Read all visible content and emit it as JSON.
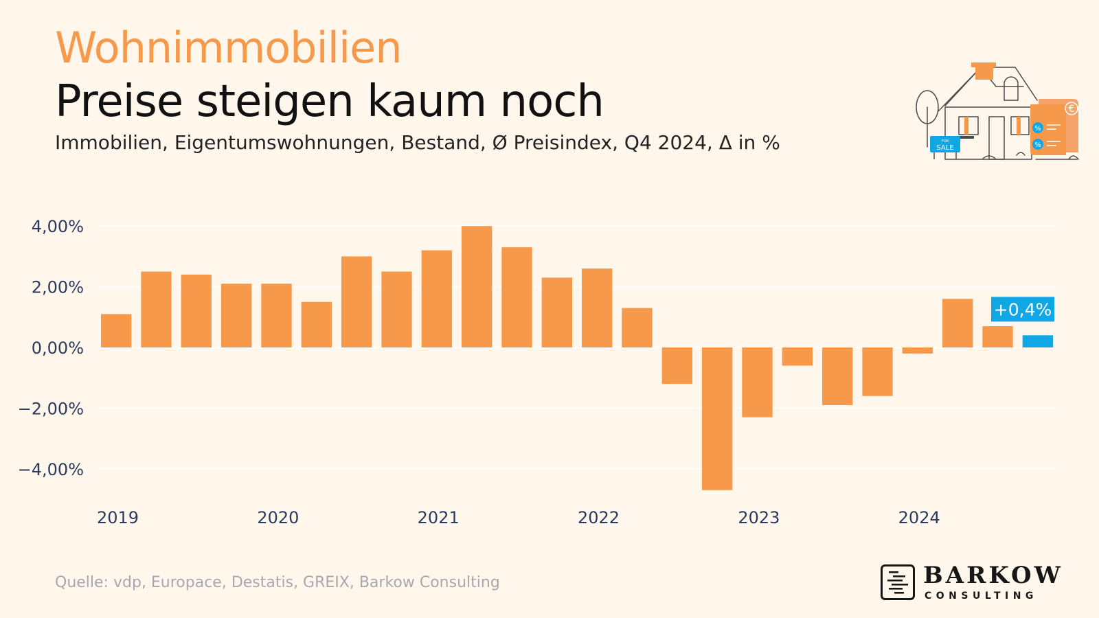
{
  "header": {
    "kicker": "Wohnimmobilien",
    "title": "Preise steigen kaum noch",
    "subtitle": "Immobilien, Eigentumswohnungen, Bestand, Ø Preisindex, Q4 2024, Δ in %"
  },
  "footer": {
    "source": "Quelle: vdp, Europace, Destatis, GREIX, Barkow Consulting"
  },
  "logo": {
    "name": "BARKOW",
    "sub": "CONSULTING",
    "icon": "barkow-logo-mark-icon"
  },
  "illustration": {
    "icon": "house-for-sale-icon",
    "sign_text": "SALE",
    "sign_small": "FOR",
    "currency_symbol": "€",
    "percent_symbol": "%"
  },
  "colors": {
    "background": "#fff6ec",
    "accent": "#f7994b",
    "highlight": "#11a7e4",
    "axis_text": "#2b3a5c"
  },
  "chart_data": {
    "type": "bar",
    "categories": [
      "Q1 2019",
      "Q2 2019",
      "Q3 2019",
      "Q4 2019",
      "Q1 2020",
      "Q2 2020",
      "Q3 2020",
      "Q4 2020",
      "Q1 2021",
      "Q2 2021",
      "Q3 2021",
      "Q4 2021",
      "Q1 2022",
      "Q2 2022",
      "Q3 2022",
      "Q4 2022",
      "Q1 2023",
      "Q2 2023",
      "Q3 2023",
      "Q4 2023",
      "Q1 2024",
      "Q2 2024",
      "Q3 2024",
      "Q4 2024"
    ],
    "values": [
      1.1,
      2.5,
      2.4,
      2.1,
      2.1,
      1.5,
      3.0,
      2.5,
      3.2,
      4.0,
      3.3,
      2.3,
      2.6,
      1.3,
      -1.2,
      -4.7,
      -2.3,
      -0.6,
      -1.9,
      -1.6,
      -0.2,
      1.6,
      0.7,
      0.4
    ],
    "highlight_index": 23,
    "highlight_label": "+0,4%",
    "ylim": [
      -5.0,
      4.3
    ],
    "yticks": [
      4,
      2,
      0,
      -2,
      -4
    ],
    "ytick_labels": [
      "4,00%",
      "2,00%",
      "0,00%",
      "−2,00%",
      "−4,00%"
    ],
    "xtick_labels": [
      "2019",
      "2020",
      "2021",
      "2022",
      "2023",
      "2024"
    ],
    "xtick_start_index": [
      0,
      4,
      8,
      12,
      16,
      20
    ],
    "grid": true,
    "legend": "none",
    "xlabel": "",
    "ylabel": ""
  }
}
